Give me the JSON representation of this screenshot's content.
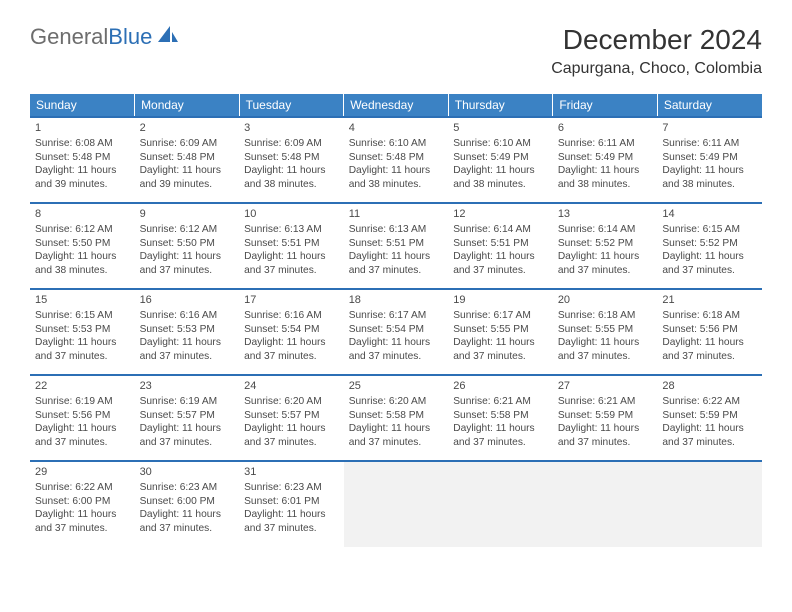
{
  "logo": {
    "word1": "General",
    "word2": "Blue"
  },
  "title": "December 2024",
  "location": "Capurgana, Choco, Colombia",
  "colors": {
    "header_bg": "#3b82c4",
    "header_text": "#ffffff",
    "row_border": "#2c6fb5",
    "text": "#4a4a4a",
    "empty_bg": "#f2f2f2"
  },
  "days_of_week": [
    "Sunday",
    "Monday",
    "Tuesday",
    "Wednesday",
    "Thursday",
    "Friday",
    "Saturday"
  ],
  "weeks": [
    [
      {
        "n": "1",
        "sr": "Sunrise: 6:08 AM",
        "ss": "Sunset: 5:48 PM",
        "d1": "Daylight: 11 hours",
        "d2": "and 39 minutes."
      },
      {
        "n": "2",
        "sr": "Sunrise: 6:09 AM",
        "ss": "Sunset: 5:48 PM",
        "d1": "Daylight: 11 hours",
        "d2": "and 39 minutes."
      },
      {
        "n": "3",
        "sr": "Sunrise: 6:09 AM",
        "ss": "Sunset: 5:48 PM",
        "d1": "Daylight: 11 hours",
        "d2": "and 38 minutes."
      },
      {
        "n": "4",
        "sr": "Sunrise: 6:10 AM",
        "ss": "Sunset: 5:48 PM",
        "d1": "Daylight: 11 hours",
        "d2": "and 38 minutes."
      },
      {
        "n": "5",
        "sr": "Sunrise: 6:10 AM",
        "ss": "Sunset: 5:49 PM",
        "d1": "Daylight: 11 hours",
        "d2": "and 38 minutes."
      },
      {
        "n": "6",
        "sr": "Sunrise: 6:11 AM",
        "ss": "Sunset: 5:49 PM",
        "d1": "Daylight: 11 hours",
        "d2": "and 38 minutes."
      },
      {
        "n": "7",
        "sr": "Sunrise: 6:11 AM",
        "ss": "Sunset: 5:49 PM",
        "d1": "Daylight: 11 hours",
        "d2": "and 38 minutes."
      }
    ],
    [
      {
        "n": "8",
        "sr": "Sunrise: 6:12 AM",
        "ss": "Sunset: 5:50 PM",
        "d1": "Daylight: 11 hours",
        "d2": "and 38 minutes."
      },
      {
        "n": "9",
        "sr": "Sunrise: 6:12 AM",
        "ss": "Sunset: 5:50 PM",
        "d1": "Daylight: 11 hours",
        "d2": "and 37 minutes."
      },
      {
        "n": "10",
        "sr": "Sunrise: 6:13 AM",
        "ss": "Sunset: 5:51 PM",
        "d1": "Daylight: 11 hours",
        "d2": "and 37 minutes."
      },
      {
        "n": "11",
        "sr": "Sunrise: 6:13 AM",
        "ss": "Sunset: 5:51 PM",
        "d1": "Daylight: 11 hours",
        "d2": "and 37 minutes."
      },
      {
        "n": "12",
        "sr": "Sunrise: 6:14 AM",
        "ss": "Sunset: 5:51 PM",
        "d1": "Daylight: 11 hours",
        "d2": "and 37 minutes."
      },
      {
        "n": "13",
        "sr": "Sunrise: 6:14 AM",
        "ss": "Sunset: 5:52 PM",
        "d1": "Daylight: 11 hours",
        "d2": "and 37 minutes."
      },
      {
        "n": "14",
        "sr": "Sunrise: 6:15 AM",
        "ss": "Sunset: 5:52 PM",
        "d1": "Daylight: 11 hours",
        "d2": "and 37 minutes."
      }
    ],
    [
      {
        "n": "15",
        "sr": "Sunrise: 6:15 AM",
        "ss": "Sunset: 5:53 PM",
        "d1": "Daylight: 11 hours",
        "d2": "and 37 minutes."
      },
      {
        "n": "16",
        "sr": "Sunrise: 6:16 AM",
        "ss": "Sunset: 5:53 PM",
        "d1": "Daylight: 11 hours",
        "d2": "and 37 minutes."
      },
      {
        "n": "17",
        "sr": "Sunrise: 6:16 AM",
        "ss": "Sunset: 5:54 PM",
        "d1": "Daylight: 11 hours",
        "d2": "and 37 minutes."
      },
      {
        "n": "18",
        "sr": "Sunrise: 6:17 AM",
        "ss": "Sunset: 5:54 PM",
        "d1": "Daylight: 11 hours",
        "d2": "and 37 minutes."
      },
      {
        "n": "19",
        "sr": "Sunrise: 6:17 AM",
        "ss": "Sunset: 5:55 PM",
        "d1": "Daylight: 11 hours",
        "d2": "and 37 minutes."
      },
      {
        "n": "20",
        "sr": "Sunrise: 6:18 AM",
        "ss": "Sunset: 5:55 PM",
        "d1": "Daylight: 11 hours",
        "d2": "and 37 minutes."
      },
      {
        "n": "21",
        "sr": "Sunrise: 6:18 AM",
        "ss": "Sunset: 5:56 PM",
        "d1": "Daylight: 11 hours",
        "d2": "and 37 minutes."
      }
    ],
    [
      {
        "n": "22",
        "sr": "Sunrise: 6:19 AM",
        "ss": "Sunset: 5:56 PM",
        "d1": "Daylight: 11 hours",
        "d2": "and 37 minutes."
      },
      {
        "n": "23",
        "sr": "Sunrise: 6:19 AM",
        "ss": "Sunset: 5:57 PM",
        "d1": "Daylight: 11 hours",
        "d2": "and 37 minutes."
      },
      {
        "n": "24",
        "sr": "Sunrise: 6:20 AM",
        "ss": "Sunset: 5:57 PM",
        "d1": "Daylight: 11 hours",
        "d2": "and 37 minutes."
      },
      {
        "n": "25",
        "sr": "Sunrise: 6:20 AM",
        "ss": "Sunset: 5:58 PM",
        "d1": "Daylight: 11 hours",
        "d2": "and 37 minutes."
      },
      {
        "n": "26",
        "sr": "Sunrise: 6:21 AM",
        "ss": "Sunset: 5:58 PM",
        "d1": "Daylight: 11 hours",
        "d2": "and 37 minutes."
      },
      {
        "n": "27",
        "sr": "Sunrise: 6:21 AM",
        "ss": "Sunset: 5:59 PM",
        "d1": "Daylight: 11 hours",
        "d2": "and 37 minutes."
      },
      {
        "n": "28",
        "sr": "Sunrise: 6:22 AM",
        "ss": "Sunset: 5:59 PM",
        "d1": "Daylight: 11 hours",
        "d2": "and 37 minutes."
      }
    ],
    [
      {
        "n": "29",
        "sr": "Sunrise: 6:22 AM",
        "ss": "Sunset: 6:00 PM",
        "d1": "Daylight: 11 hours",
        "d2": "and 37 minutes."
      },
      {
        "n": "30",
        "sr": "Sunrise: 6:23 AM",
        "ss": "Sunset: 6:00 PM",
        "d1": "Daylight: 11 hours",
        "d2": "and 37 minutes."
      },
      {
        "n": "31",
        "sr": "Sunrise: 6:23 AM",
        "ss": "Sunset: 6:01 PM",
        "d1": "Daylight: 11 hours",
        "d2": "and 37 minutes."
      },
      null,
      null,
      null,
      null
    ]
  ]
}
